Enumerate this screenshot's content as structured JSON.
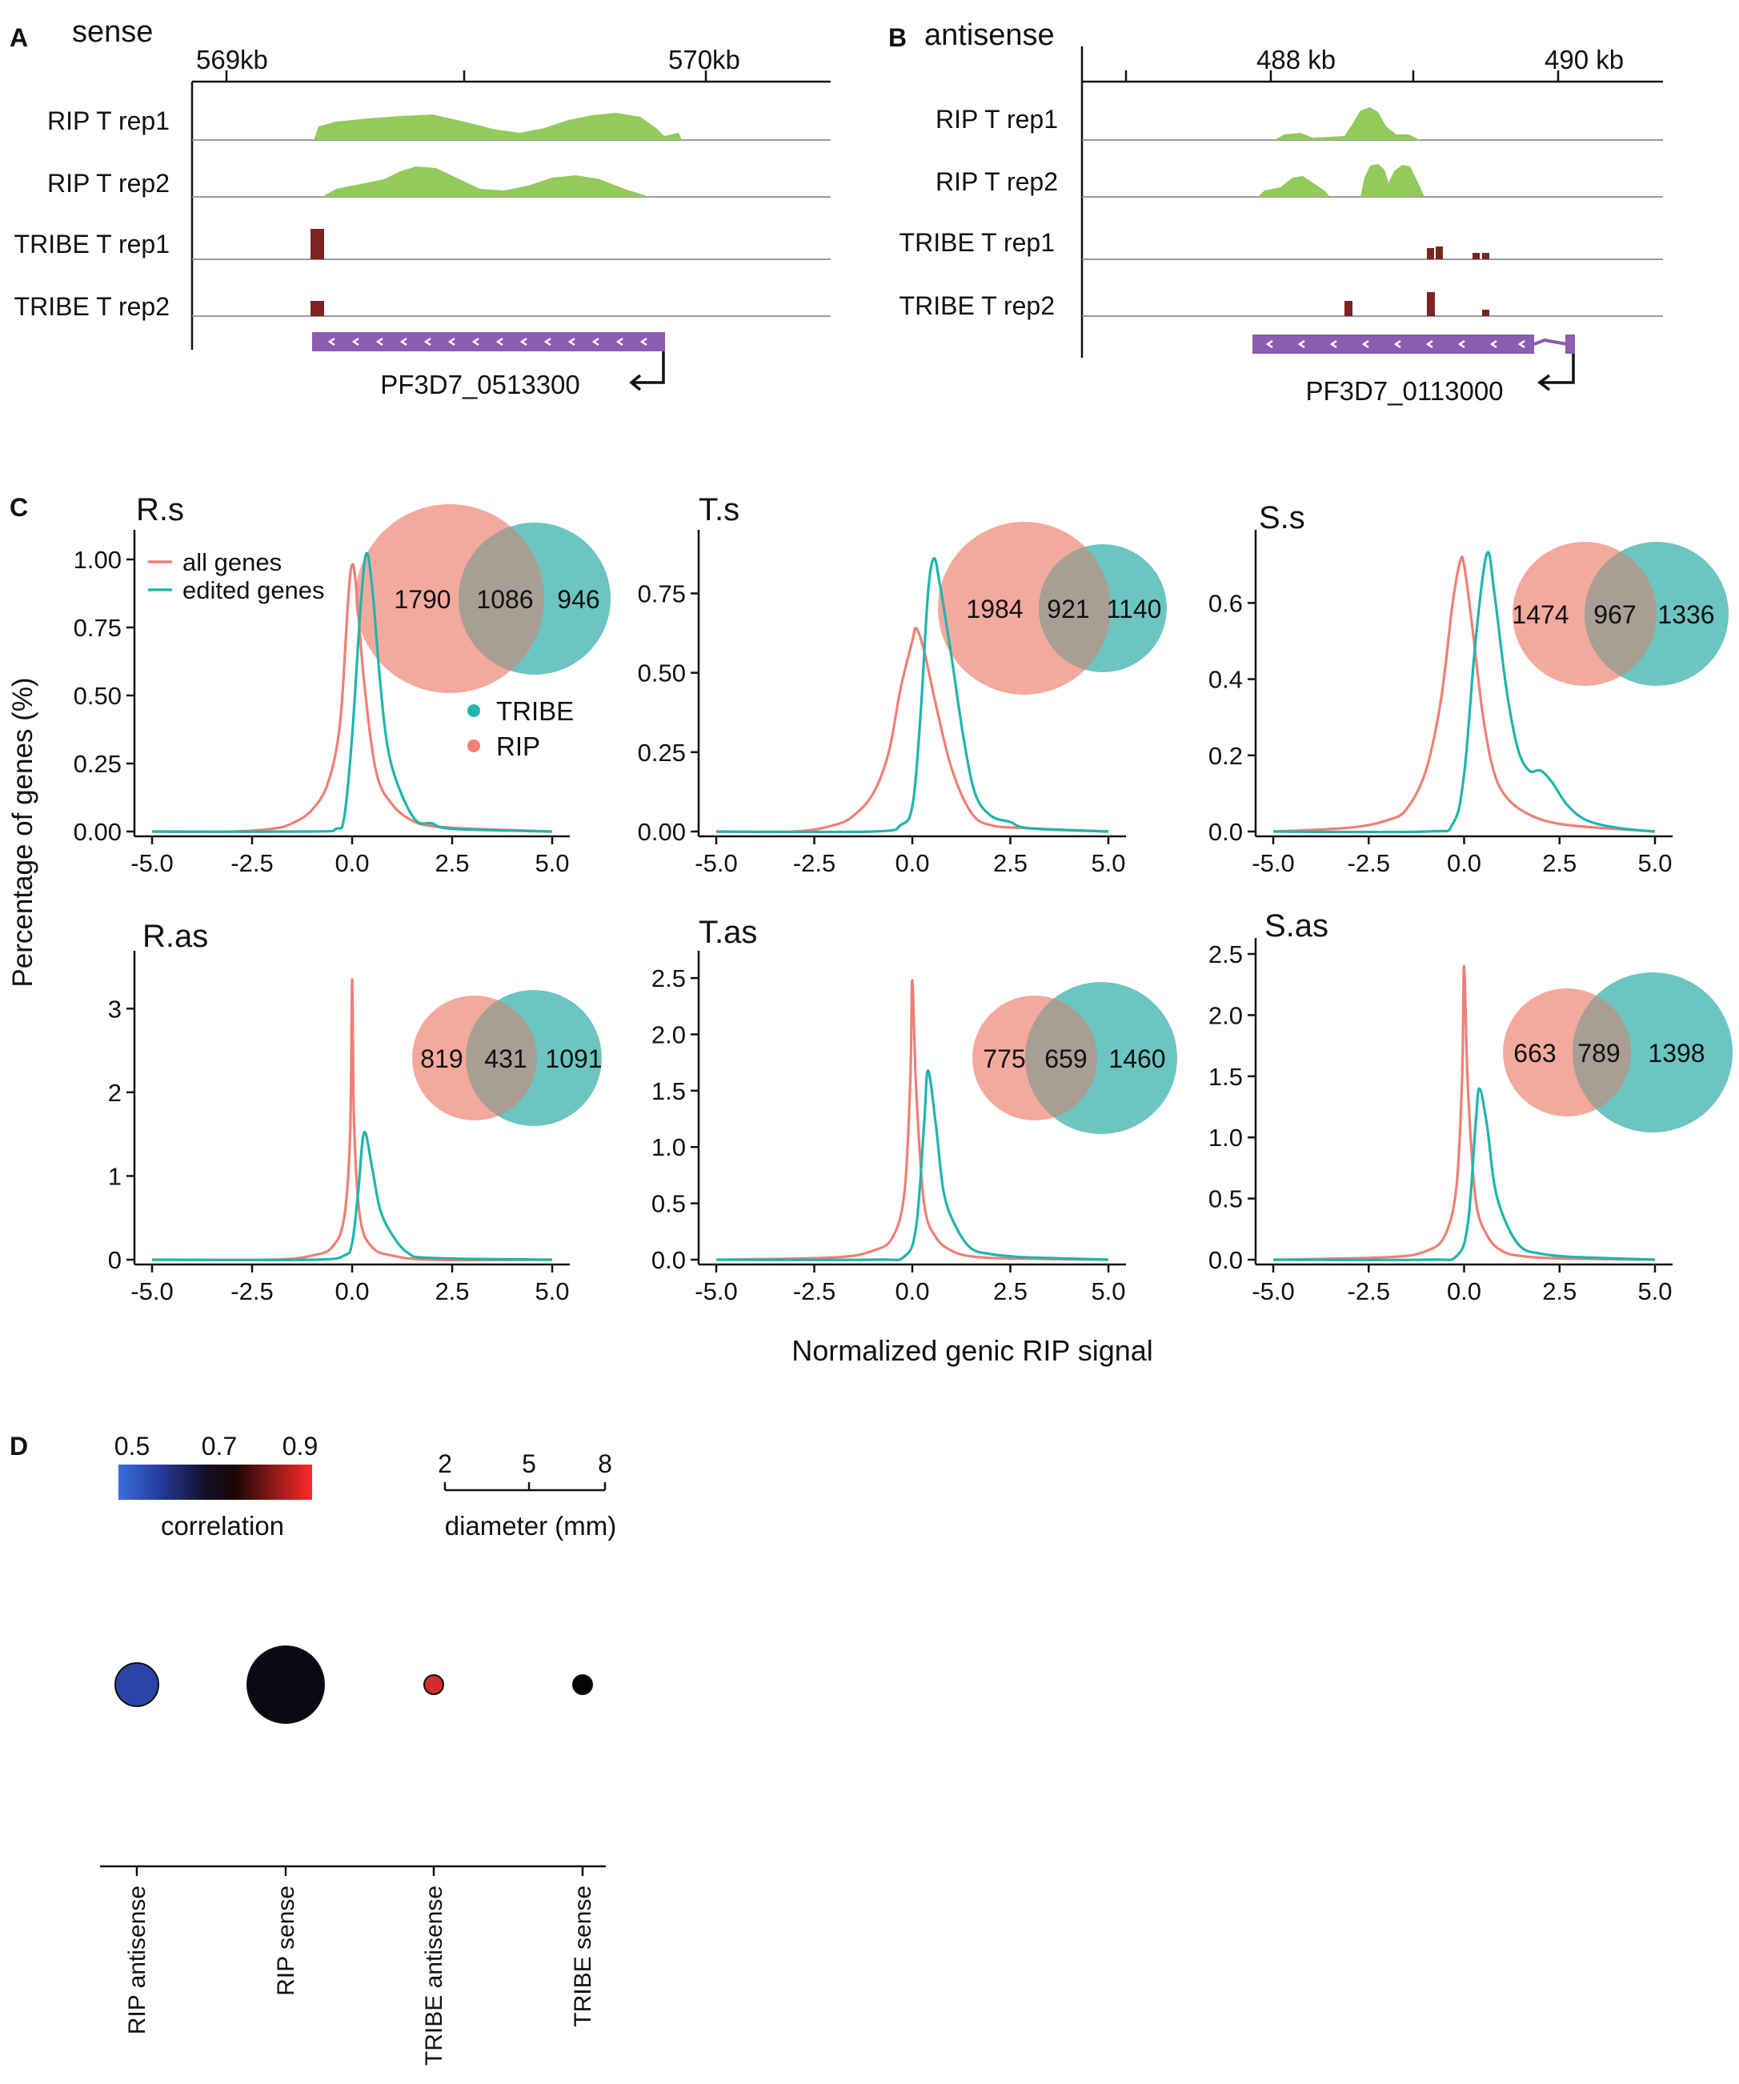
{
  "panels": {
    "A": {
      "letter": "A",
      "title": "sense",
      "coord_labels": [
        "569kb",
        "570kb"
      ],
      "tracks": [
        "RIP T rep1",
        "RIP T rep2",
        "TRIBE T rep1",
        "TRIBE T rep2"
      ],
      "gene": "PF3D7_0513300"
    },
    "B": {
      "letter": "B",
      "title": "antisense",
      "coord_labels": [
        "488 kb",
        "490 kb"
      ],
      "tracks": [
        "RIP T rep1",
        "RIP T rep2",
        "TRIBE T rep1",
        "TRIBE T rep2"
      ],
      "gene": "PF3D7_0113000"
    },
    "C": {
      "letter": "C"
    },
    "D": {
      "letter": "D"
    }
  },
  "colors": {
    "rip": "#f07f75",
    "tribe": "#1fb5ad",
    "rip_fill": "#f4a99d",
    "tribe_fill": "#6cc5c1",
    "overlap": "#a89e94",
    "green": "#93ca5c",
    "dark_red": "#7b2420",
    "gene": "#8c5cb0"
  },
  "chart_data": [
    {
      "type": "line",
      "panel": "C",
      "title": "R.s",
      "xlim": [
        -5,
        5
      ],
      "ylim": [
        0,
        1.05
      ],
      "xticks": [
        "-5.0",
        "-2.5",
        "0.0",
        "2.5",
        "5.0"
      ],
      "yticks": [
        "0.00",
        "0.25",
        "0.50",
        "0.75",
        "1.00"
      ],
      "ylabel": "Percentage of genes (%)",
      "legend_lines": [
        "all genes",
        "edited genes"
      ],
      "legend_dots": [
        "TRIBE",
        "RIP"
      ],
      "series": [
        {
          "name": "all genes",
          "points": [
            [
              -5,
              0
            ],
            [
              -3,
              0
            ],
            [
              -2,
              0.01
            ],
            [
              -1.5,
              0.03
            ],
            [
              -1,
              0.08
            ],
            [
              -0.6,
              0.18
            ],
            [
              -0.3,
              0.4
            ],
            [
              -0.1,
              0.85
            ],
            [
              0,
              0.98
            ],
            [
              0.1,
              0.9
            ],
            [
              0.3,
              0.55
            ],
            [
              0.6,
              0.22
            ],
            [
              1,
              0.1
            ],
            [
              1.5,
              0.04
            ],
            [
              2,
              0.02
            ],
            [
              3,
              0.01
            ],
            [
              5,
              0
            ]
          ]
        },
        {
          "name": "edited genes",
          "points": [
            [
              -5,
              0
            ],
            [
              -1,
              0
            ],
            [
              -0.4,
              0.01
            ],
            [
              -0.2,
              0.05
            ],
            [
              0,
              0.35
            ],
            [
              0.2,
              0.8
            ],
            [
              0.35,
              1.02
            ],
            [
              0.5,
              0.9
            ],
            [
              0.7,
              0.55
            ],
            [
              0.9,
              0.3
            ],
            [
              1.2,
              0.15
            ],
            [
              1.6,
              0.04
            ],
            [
              2,
              0.03
            ],
            [
              2.5,
              0.01
            ],
            [
              5,
              0
            ]
          ]
        }
      ],
      "venn": {
        "left": "1790",
        "mid": "1086",
        "right": "946"
      }
    },
    {
      "type": "line",
      "panel": "C",
      "title": "T.s",
      "xlim": [
        -5,
        5
      ],
      "ylim": [
        0,
        0.9
      ],
      "xticks": [
        "-5.0",
        "-2.5",
        "0.0",
        "2.5",
        "5.0"
      ],
      "yticks": [
        "0.00",
        "0.25",
        "0.50",
        "0.75"
      ],
      "series": [
        {
          "name": "all genes",
          "points": [
            [
              -5,
              0
            ],
            [
              -3,
              0
            ],
            [
              -2,
              0.02
            ],
            [
              -1.5,
              0.05
            ],
            [
              -1,
              0.12
            ],
            [
              -0.6,
              0.25
            ],
            [
              -0.3,
              0.45
            ],
            [
              0,
              0.6
            ],
            [
              0.1,
              0.64
            ],
            [
              0.3,
              0.57
            ],
            [
              0.6,
              0.4
            ],
            [
              1,
              0.2
            ],
            [
              1.5,
              0.06
            ],
            [
              2,
              0.02
            ],
            [
              3,
              0.01
            ],
            [
              5,
              0
            ]
          ]
        },
        {
          "name": "edited genes",
          "points": [
            [
              -5,
              0
            ],
            [
              -1,
              0
            ],
            [
              -0.3,
              0.02
            ],
            [
              0,
              0.08
            ],
            [
              0.2,
              0.35
            ],
            [
              0.4,
              0.75
            ],
            [
              0.55,
              0.86
            ],
            [
              0.7,
              0.78
            ],
            [
              1,
              0.55
            ],
            [
              1.3,
              0.3
            ],
            [
              1.6,
              0.12
            ],
            [
              2,
              0.05
            ],
            [
              2.5,
              0.03
            ],
            [
              3,
              0.01
            ],
            [
              5,
              0
            ]
          ]
        }
      ],
      "venn": {
        "left": "1984",
        "mid": "921",
        "right": "1140"
      }
    },
    {
      "type": "line",
      "panel": "C",
      "title": "S.s",
      "xlim": [
        -5,
        5
      ],
      "ylim": [
        0,
        0.75
      ],
      "xticks": [
        "-5.0",
        "-2.5",
        "0.0",
        "2.5",
        "5.0"
      ],
      "yticks": [
        "0.0",
        "0.2",
        "0.4",
        "0.6"
      ],
      "series": [
        {
          "name": "all genes",
          "points": [
            [
              -5,
              0
            ],
            [
              -3,
              0.01
            ],
            [
              -2,
              0.03
            ],
            [
              -1.5,
              0.06
            ],
            [
              -1,
              0.16
            ],
            [
              -0.6,
              0.35
            ],
            [
              -0.3,
              0.6
            ],
            [
              -0.1,
              0.71
            ],
            [
              0,
              0.7
            ],
            [
              0.2,
              0.55
            ],
            [
              0.5,
              0.3
            ],
            [
              0.8,
              0.15
            ],
            [
              1.2,
              0.08
            ],
            [
              1.8,
              0.04
            ],
            [
              2.5,
              0.02
            ],
            [
              3.5,
              0.01
            ],
            [
              5,
              0
            ]
          ]
        },
        {
          "name": "edited genes",
          "points": [
            [
              -5,
              0
            ],
            [
              -1,
              0
            ],
            [
              -0.3,
              0.02
            ],
            [
              0,
              0.15
            ],
            [
              0.3,
              0.5
            ],
            [
              0.6,
              0.73
            ],
            [
              0.8,
              0.62
            ],
            [
              1.1,
              0.38
            ],
            [
              1.4,
              0.22
            ],
            [
              1.7,
              0.16
            ],
            [
              2,
              0.16
            ],
            [
              2.3,
              0.13
            ],
            [
              2.7,
              0.07
            ],
            [
              3.2,
              0.03
            ],
            [
              4,
              0.01
            ],
            [
              5,
              0
            ]
          ]
        }
      ],
      "venn": {
        "left": "1474",
        "mid": "967",
        "right": "1336"
      }
    },
    {
      "type": "line",
      "panel": "C",
      "title": "R.as",
      "xlim": [
        -5,
        5
      ],
      "ylim": [
        0,
        3.5
      ],
      "xticks": [
        "-5.0",
        "-2.5",
        "0.0",
        "2.5",
        "5.0"
      ],
      "yticks": [
        "0",
        "1",
        "2",
        "3"
      ],
      "series": [
        {
          "name": "all genes",
          "points": [
            [
              -5,
              0
            ],
            [
              -2,
              0
            ],
            [
              -1,
              0.05
            ],
            [
              -0.5,
              0.15
            ],
            [
              -0.2,
              0.5
            ],
            [
              -0.05,
              1.5
            ],
            [
              0,
              3.35
            ],
            [
              0.05,
              1.6
            ],
            [
              0.2,
              0.5
            ],
            [
              0.5,
              0.15
            ],
            [
              1,
              0.05
            ],
            [
              2,
              0
            ],
            [
              5,
              0
            ]
          ]
        },
        {
          "name": "edited genes",
          "points": [
            [
              -5,
              0
            ],
            [
              -1,
              0
            ],
            [
              -0.2,
              0.05
            ],
            [
              0,
              0.2
            ],
            [
              0.15,
              0.8
            ],
            [
              0.3,
              1.52
            ],
            [
              0.5,
              1.1
            ],
            [
              0.7,
              0.6
            ],
            [
              1,
              0.3
            ],
            [
              1.4,
              0.08
            ],
            [
              2,
              0.02
            ],
            [
              5,
              0
            ]
          ]
        }
      ],
      "venn": {
        "left": "819",
        "mid": "431",
        "right": "1091"
      }
    },
    {
      "type": "line",
      "panel": "C",
      "title": "T.as",
      "xlim": [
        -5,
        5
      ],
      "ylim": [
        0,
        2.6
      ],
      "xticks": [
        "-5.0",
        "-2.5",
        "0.0",
        "2.5",
        "5.0"
      ],
      "yticks": [
        "0.0",
        "0.5",
        "1.0",
        "1.5",
        "2.0",
        "2.5"
      ],
      "xlabel": "Normalized genic RIP signal",
      "series": [
        {
          "name": "all genes",
          "points": [
            [
              -5,
              0
            ],
            [
              -2,
              0.02
            ],
            [
              -1,
              0.08
            ],
            [
              -0.5,
              0.2
            ],
            [
              -0.2,
              0.6
            ],
            [
              -0.05,
              1.6
            ],
            [
              0,
              2.48
            ],
            [
              0.1,
              1.5
            ],
            [
              0.3,
              0.5
            ],
            [
              0.6,
              0.2
            ],
            [
              1,
              0.08
            ],
            [
              1.5,
              0.03
            ],
            [
              2.5,
              0.01
            ],
            [
              5,
              0
            ]
          ]
        },
        {
          "name": "edited genes",
          "points": [
            [
              -5,
              0
            ],
            [
              -1,
              0
            ],
            [
              -0.2,
              0.03
            ],
            [
              0.1,
              0.3
            ],
            [
              0.3,
              1.2
            ],
            [
              0.4,
              1.68
            ],
            [
              0.6,
              1.2
            ],
            [
              0.8,
              0.6
            ],
            [
              1.1,
              0.3
            ],
            [
              1.5,
              0.1
            ],
            [
              2,
              0.05
            ],
            [
              2.5,
              0.03
            ],
            [
              3,
              0.02
            ],
            [
              5,
              0
            ]
          ]
        }
      ],
      "venn": {
        "left": "775",
        "mid": "659",
        "right": "1460"
      }
    },
    {
      "type": "line",
      "panel": "C",
      "title": "S.as",
      "xlim": [
        -5,
        5
      ],
      "ylim": [
        0,
        2.5
      ],
      "xticks": [
        "-5.0",
        "-2.5",
        "0.0",
        "2.5",
        "5.0"
      ],
      "yticks": [
        "0.0",
        "0.5",
        "1.0",
        "1.5",
        "2.0",
        "2.5"
      ],
      "series": [
        {
          "name": "all genes",
          "points": [
            [
              -5,
              0
            ],
            [
              -2,
              0.02
            ],
            [
              -1,
              0.07
            ],
            [
              -0.5,
              0.2
            ],
            [
              -0.2,
              0.6
            ],
            [
              -0.05,
              1.5
            ],
            [
              0,
              2.4
            ],
            [
              0.1,
              1.4
            ],
            [
              0.3,
              0.5
            ],
            [
              0.6,
              0.2
            ],
            [
              1,
              0.07
            ],
            [
              1.5,
              0.03
            ],
            [
              2.5,
              0.01
            ],
            [
              5,
              0
            ]
          ]
        },
        {
          "name": "edited genes",
          "points": [
            [
              -5,
              0
            ],
            [
              -1,
              0
            ],
            [
              -0.2,
              0.03
            ],
            [
              0.1,
              0.3
            ],
            [
              0.3,
              1.1
            ],
            [
              0.4,
              1.4
            ],
            [
              0.6,
              1.1
            ],
            [
              0.8,
              0.6
            ],
            [
              1.1,
              0.3
            ],
            [
              1.5,
              0.1
            ],
            [
              2,
              0.05
            ],
            [
              2.5,
              0.03
            ],
            [
              3,
              0.02
            ],
            [
              5,
              0
            ]
          ]
        }
      ],
      "venn": {
        "left": "663",
        "mid": "789",
        "right": "1398"
      }
    },
    {
      "type": "scatter",
      "panel": "D",
      "color_scale": {
        "title": "correlation",
        "ticks": [
          "0.5",
          "0.7",
          "0.9"
        ]
      },
      "size_scale": {
        "title": "diameter (mm)",
        "ticks": [
          "2",
          "5",
          "8"
        ]
      },
      "categories": [
        "RIP antisense",
        "RIP sense",
        "TRIBE antisense",
        "TRIBE sense"
      ],
      "points": [
        {
          "category": "RIP antisense",
          "diameter": 2.7,
          "color": "#2a45a8"
        },
        {
          "category": "RIP sense",
          "diameter": 4.8,
          "color": "#0a0812"
        },
        {
          "category": "TRIBE antisense",
          "diameter": 1.2,
          "color": "#d12e2a"
        },
        {
          "category": "TRIBE sense",
          "diameter": 1.2,
          "color": "#050505"
        }
      ]
    }
  ]
}
